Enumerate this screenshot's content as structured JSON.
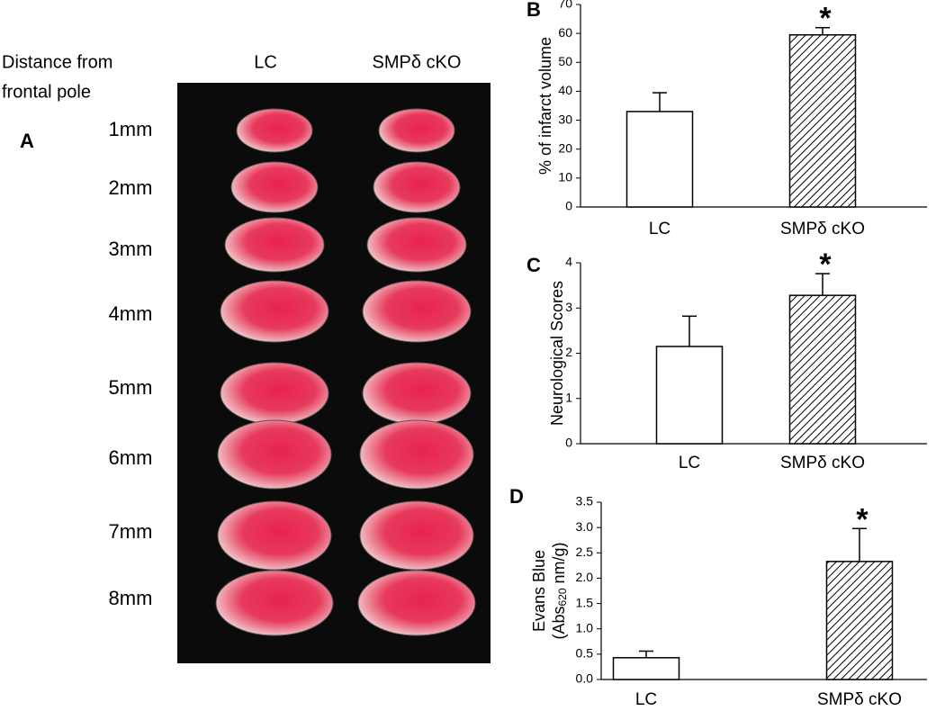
{
  "panel_a": {
    "letter": "A",
    "row_header": [
      "Distance from",
      "frontal pole"
    ],
    "columns": [
      "LC",
      "SMPδ cKO"
    ],
    "rows": [
      "1mm",
      "2mm",
      "3mm",
      "4mm",
      "5mm",
      "6mm",
      "7mm",
      "8mm"
    ]
  },
  "chart_data": [
    {
      "type": "bar",
      "letter": "B",
      "y_label": [
        "% of infarct volume"
      ],
      "categories": [
        "LC",
        "SMPδ cKO"
      ],
      "values": [
        33,
        59.5
      ],
      "errors": [
        6.5,
        2.5
      ],
      "hatched": [
        false,
        true
      ],
      "annotation": "*",
      "significant": [
        false,
        true
      ],
      "ylim": [
        0,
        70
      ],
      "yticks": [
        0,
        10,
        20,
        30,
        40,
        50,
        60,
        70
      ]
    },
    {
      "type": "bar",
      "letter": "C",
      "y_label": [
        "Neurological Scores"
      ],
      "categories": [
        "LC",
        "SMPδ cKO"
      ],
      "values": [
        2.15,
        3.28
      ],
      "errors": [
        0.67,
        0.48
      ],
      "hatched": [
        false,
        true
      ],
      "annotation": "*",
      "significant": [
        false,
        true
      ],
      "ylim": [
        0,
        4
      ],
      "yticks": [
        0,
        1,
        2,
        3,
        4
      ]
    },
    {
      "type": "bar",
      "letter": "D",
      "y_label": [
        "Evans Blue",
        "(Abs",
        "620",
        " nm/g)"
      ],
      "categories": [
        "LC",
        "SMPδ cKO"
      ],
      "values": [
        0.43,
        2.33
      ],
      "errors": [
        0.13,
        0.65
      ],
      "hatched": [
        false,
        true
      ],
      "annotation": "*",
      "significant": [
        false,
        true
      ],
      "ylim": [
        0,
        3.5
      ],
      "yticks": [
        {
          "value": 0,
          "label": "0.0"
        },
        0.5,
        {
          "value": 1,
          "label": "1.0"
        },
        1.5,
        {
          "value": 2,
          "label": "2.0"
        },
        2.5,
        {
          "value": 3,
          "label": "3.0"
        },
        3.5
      ]
    }
  ]
}
